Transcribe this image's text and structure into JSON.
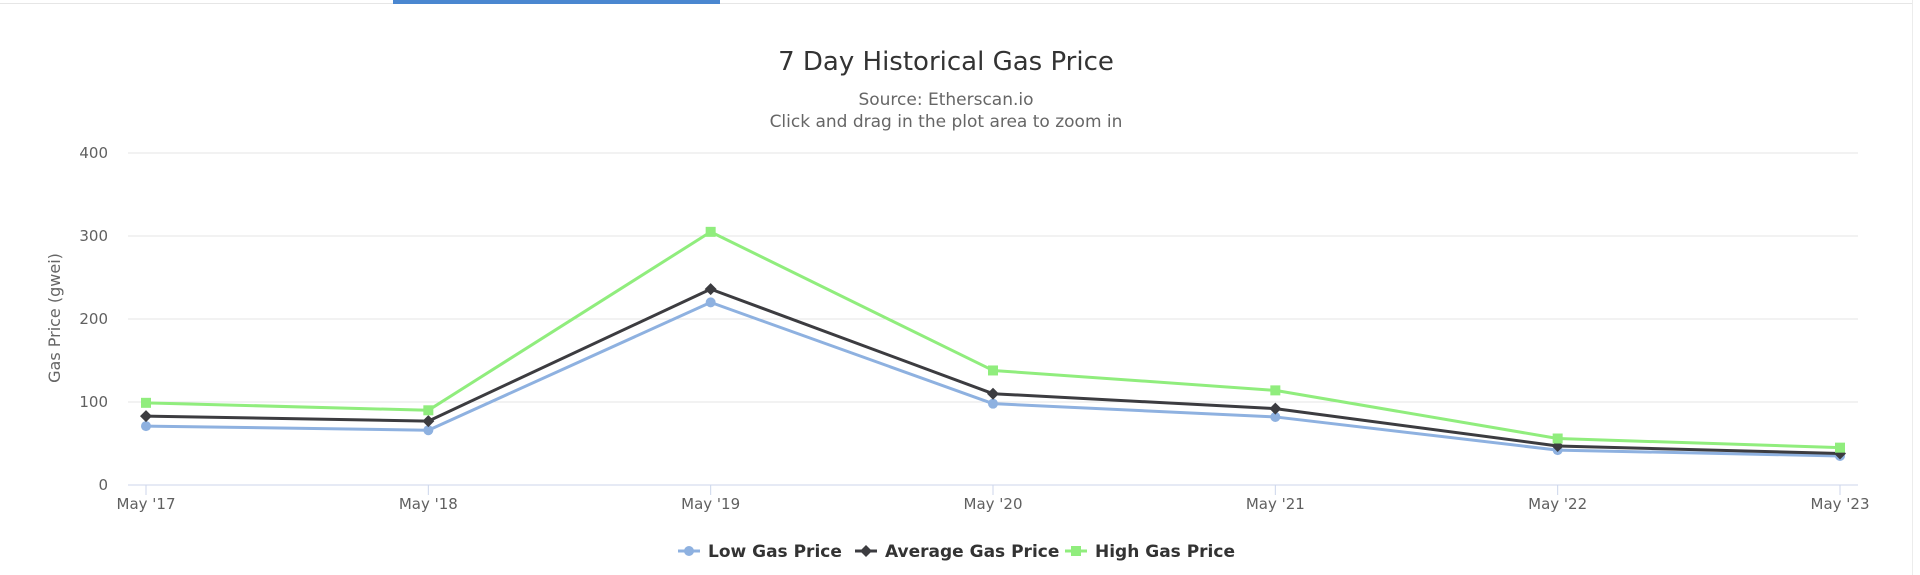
{
  "tab_indicator_color": "#4a87d0",
  "chart_data": {
    "type": "line",
    "title": "7 Day Historical Gas Price",
    "subtitle": "Source: Etherscan.io",
    "subtitle2": "Click and drag in the plot area to zoom in",
    "xlabel": "",
    "ylabel": "Gas Price (gwei)",
    "categories": [
      "May '17",
      "May '18",
      "May '19",
      "May '20",
      "May '21",
      "May '22",
      "May '23"
    ],
    "ylim": [
      0,
      400
    ],
    "yticks": [
      0,
      100,
      200,
      300,
      400
    ],
    "grid": true,
    "legend_position": "bottom-center",
    "series": [
      {
        "name": "Low Gas Price",
        "color": "#8eb1e0",
        "marker": "circle",
        "values": [
          71,
          66,
          220,
          98,
          82,
          42,
          35
        ]
      },
      {
        "name": "Average Gas Price",
        "color": "#3c3c40",
        "marker": "diamond",
        "values": [
          83,
          77,
          236,
          110,
          92,
          47,
          38
        ]
      },
      {
        "name": "High Gas Price",
        "color": "#90ed7d",
        "marker": "square",
        "values": [
          99,
          90,
          305,
          138,
          114,
          56,
          45
        ]
      }
    ]
  }
}
